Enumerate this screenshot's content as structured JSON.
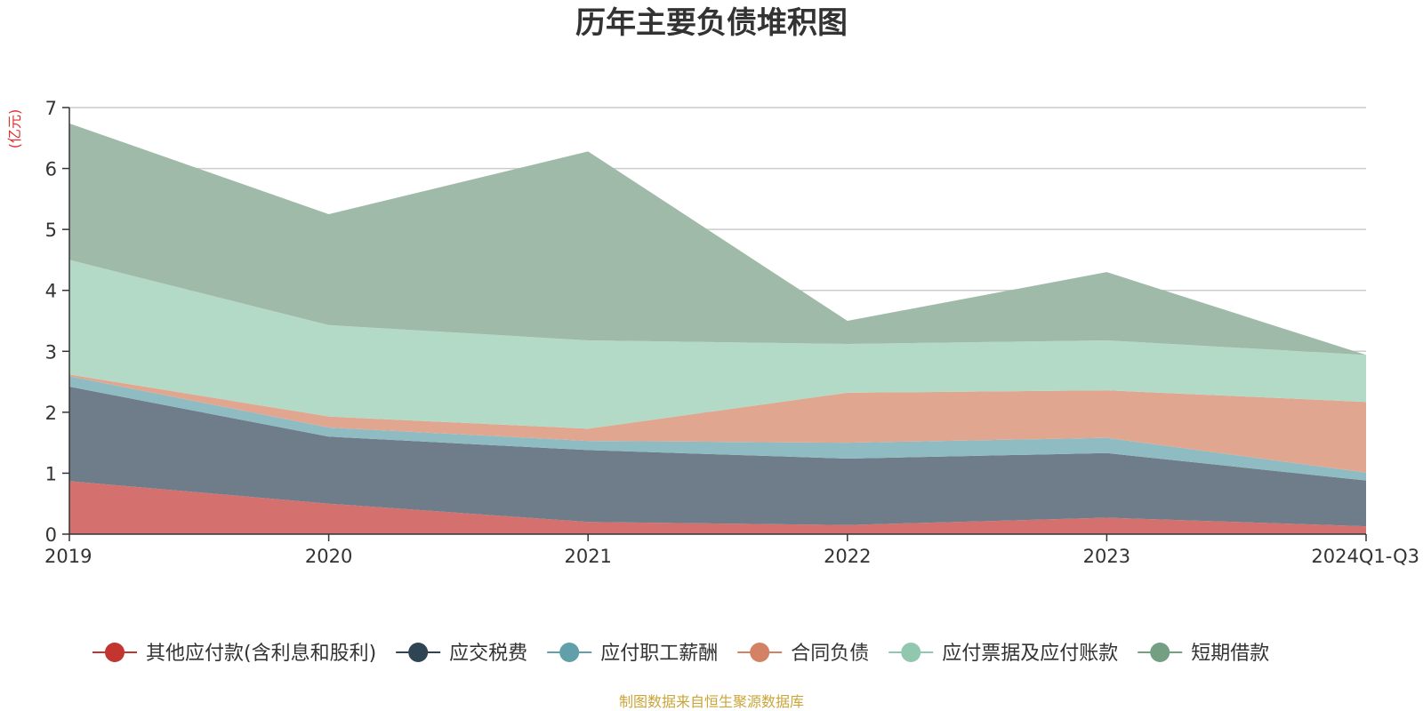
{
  "chart_data": {
    "type": "area",
    "stacked": true,
    "title": "历年主要负债堆积图",
    "ylabel": "(亿元)",
    "xlabel": "",
    "ylim": [
      0,
      7
    ],
    "yticks": [
      0,
      1,
      2,
      3,
      4,
      5,
      6,
      7
    ],
    "categories": [
      "2019",
      "2020",
      "2021",
      "2022",
      "2023",
      "2024Q1-Q3"
    ],
    "series": [
      {
        "name": "其他应付款(含利息和股利)",
        "color": "#c23531",
        "fill": "#d4706e",
        "values": [
          0.87,
          0.5,
          0.2,
          0.15,
          0.27,
          0.13
        ]
      },
      {
        "name": "应交税费",
        "color": "#2f4554",
        "fill": "#6e7d89",
        "values": [
          1.55,
          1.1,
          1.18,
          1.09,
          1.06,
          0.75
        ]
      },
      {
        "name": "应付职工薪酬",
        "color": "#61a0a8",
        "fill": "#8fbcc2",
        "values": [
          0.17,
          0.15,
          0.15,
          0.26,
          0.25,
          0.13
        ]
      },
      {
        "name": "合同负债",
        "color": "#d48265",
        "fill": "#e1a690",
        "values": [
          0.03,
          0.18,
          0.2,
          0.82,
          0.78,
          1.16
        ]
      },
      {
        "name": "应付票据及应付账款",
        "color": "#91c7ae",
        "fill": "#b3dac7",
        "values": [
          1.88,
          1.5,
          1.45,
          0.8,
          0.82,
          0.77
        ]
      },
      {
        "name": "短期借款",
        "color": "#749f83",
        "fill": "#9fbaa8",
        "values": [
          2.24,
          1.82,
          3.1,
          0.38,
          1.12,
          0.0
        ]
      }
    ],
    "legend_position": "bottom",
    "grid": true
  },
  "footer": {
    "source": "制图数据来自恒生聚源数据库"
  }
}
